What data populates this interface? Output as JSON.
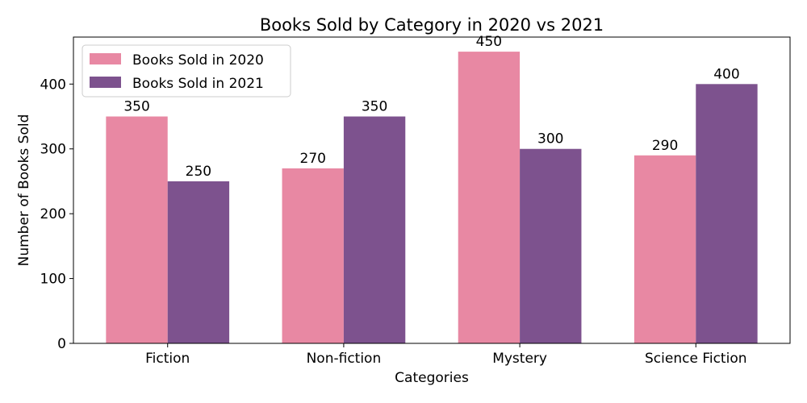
{
  "chart_data": {
    "type": "bar",
    "title": "Books Sold by Category in 2020 vs 2021",
    "xlabel": "Categories",
    "ylabel": "Number of Books Sold",
    "categories": [
      "Fiction",
      "Non-fiction",
      "Mystery",
      "Science Fiction"
    ],
    "series": [
      {
        "name": "Books Sold in 2020",
        "values": [
          350,
          270,
          450,
          290
        ],
        "color": "#e888a3"
      },
      {
        "name": "Books Sold in 2021",
        "values": [
          250,
          350,
          300,
          400
        ],
        "color": "#7d528e"
      }
    ],
    "ylim": [
      0,
      472.5
    ],
    "yticks": [
      0,
      100,
      200,
      300,
      400
    ],
    "grid": false,
    "legend_position": "top-left"
  }
}
